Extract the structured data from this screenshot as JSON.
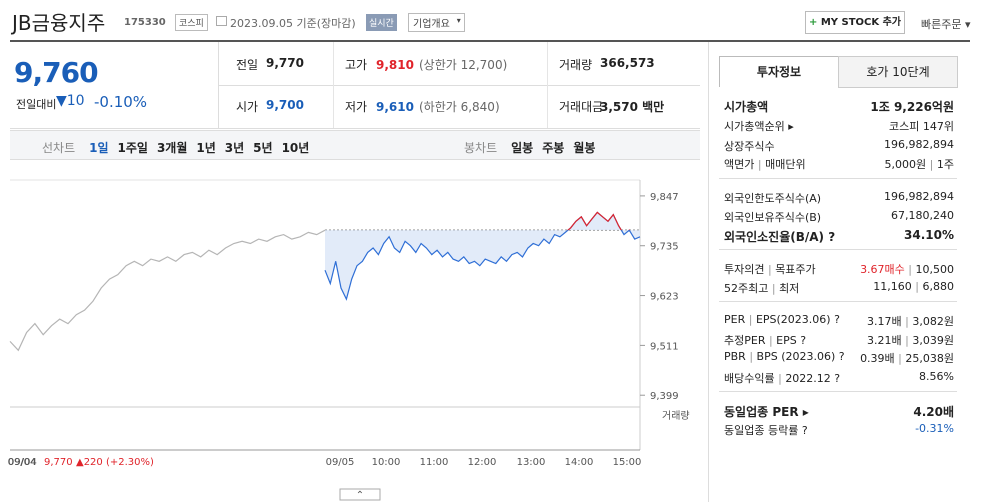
{
  "header": {
    "name": "JB금융지주",
    "code": "175330",
    "market": "코스피",
    "date": "2023.09.05 기준(장마감)",
    "realtime": "실시간",
    "overview": "기업개요",
    "mystock": "MY STOCK 추가",
    "quick_order": "빠른주문"
  },
  "quote": {
    "price": "9,760",
    "change_label": "전일대비",
    "change": "▼10",
    "change_rate": "-0.10%",
    "cells": [
      {
        "label": "전일",
        "value": "9,770"
      },
      {
        "label": "고가",
        "value": "9,810",
        "extra": "(상한가 12,700)"
      },
      {
        "label": "거래량",
        "value": "366,573"
      },
      {
        "label": "시가",
        "value": "9,700"
      },
      {
        "label": "저가",
        "value": "9,610",
        "extra": "(하한가 6,840)"
      },
      {
        "label": "거래대금",
        "value": "3,570 백만"
      }
    ]
  },
  "periods": {
    "line_label": "선차트",
    "line": [
      "1일",
      "1주일",
      "3개월",
      "1년",
      "3년",
      "5년",
      "10년"
    ],
    "candle_label": "봉차트",
    "candle": [
      "일봉",
      "주봉",
      "월봉"
    ]
  },
  "chart_data": {
    "type": "line",
    "ylim": [
      9377,
      9876
    ],
    "yticks": [
      {
        "value": 9847,
        "label": "9,847"
      },
      {
        "value": 9735,
        "label": "9,735"
      },
      {
        "value": 9623,
        "label": "9,623"
      },
      {
        "value": 9511,
        "label": "9,511"
      },
      {
        "value": 9399,
        "label": "9,399"
      }
    ],
    "baseline": 9770,
    "volume_label": "거래량",
    "xticks": [
      "09/04",
      "09/05",
      "10:00",
      "11:00",
      "12:00",
      "13:00",
      "14:00",
      "15:00"
    ],
    "prev_note": {
      "date": "09/04",
      "price": "9,770",
      "change": "▲220 (+2.30%)"
    },
    "series": [
      {
        "name": "09/04",
        "color": "#b5b5b5",
        "values": [
          9520,
          9500,
          9540,
          9560,
          9535,
          9555,
          9570,
          9560,
          9580,
          9590,
          9610,
          9640,
          9660,
          9670,
          9690,
          9700,
          9690,
          9705,
          9700,
          9710,
          9700,
          9715,
          9720,
          9710,
          9725,
          9715,
          9730,
          9740,
          9745,
          9740,
          9750,
          9745,
          9755,
          9760,
          9750,
          9755,
          9765,
          9760,
          9770
        ]
      },
      {
        "name": "09/05",
        "color": "#2f6fd6",
        "up_color": "#e0242b",
        "fill": "#dde8f8",
        "values": [
          9680,
          9650,
          9700,
          9640,
          9615,
          9660,
          9690,
          9700,
          9720,
          9730,
          9715,
          9740,
          9755,
          9730,
          9720,
          9745,
          9735,
          9720,
          9740,
          9730,
          9715,
          9725,
          9710,
          9720,
          9705,
          9700,
          9710,
          9695,
          9700,
          9690,
          9705,
          9700,
          9695,
          9710,
          9700,
          9715,
          9720,
          9710,
          9730,
          9740,
          9735,
          9750,
          9740,
          9760,
          9755,
          9765,
          9775,
          9790,
          9800,
          9780,
          9795,
          9810,
          9800,
          9790,
          9805,
          9780,
          9760,
          9770,
          9750,
          9755
        ]
      }
    ]
  },
  "tabs": [
    "투자정보",
    "호가 10단계"
  ],
  "invest": [
    [
      {
        "labels": [
          "시가총액"
        ],
        "values": [
          "1조 9,226억원"
        ],
        "bold": true
      },
      {
        "labels": [
          "시가총액순위 ▸"
        ],
        "values": [
          "코스피 147위"
        ]
      },
      {
        "labels": [
          "상장주식수"
        ],
        "values": [
          "196,982,894"
        ]
      },
      {
        "labels": [
          "액면가",
          "매매단위"
        ],
        "values": [
          "5,000원",
          "1주"
        ]
      }
    ],
    [
      {
        "labels": [
          "외국인한도주식수(A)"
        ],
        "values": [
          "196,982,894"
        ]
      },
      {
        "labels": [
          "외국인보유주식수(B)"
        ],
        "values": [
          "67,180,240"
        ]
      },
      {
        "labels": [
          "외국인소진율(B/A) ?"
        ],
        "values": [
          "34.10%"
        ],
        "bold": true
      }
    ],
    [
      {
        "labels": [
          "투자의견",
          "목표주가"
        ],
        "values": [
          "3.67매수",
          "10,500"
        ],
        "value_color": "#e0242b"
      },
      {
        "labels": [
          "52주최고",
          "최저"
        ],
        "values": [
          "11,160",
          "6,880"
        ]
      }
    ],
    [
      {
        "labels": [
          "PER",
          "EPS(2023.06) ?"
        ],
        "values": [
          "3.17배",
          "3,082원"
        ]
      },
      {
        "labels": [
          "추정PER",
          "EPS ?"
        ],
        "values": [
          "3.21배",
          "3,039원"
        ]
      },
      {
        "labels": [
          "PBR",
          "BPS (2023.06) ?"
        ],
        "values": [
          "0.39배",
          "25,038원"
        ]
      },
      {
        "labels": [
          "배당수익률",
          "2022.12 ?"
        ],
        "values": [
          "8.56%"
        ]
      }
    ],
    [
      {
        "labels": [
          "동일업종 PER ▸"
        ],
        "values": [
          "4.20배"
        ],
        "bold": true
      },
      {
        "labels": [
          "동일업종 등락률 ?"
        ],
        "values": [
          "-0.31%"
        ],
        "value_color": "#1a5eb8"
      }
    ]
  ]
}
